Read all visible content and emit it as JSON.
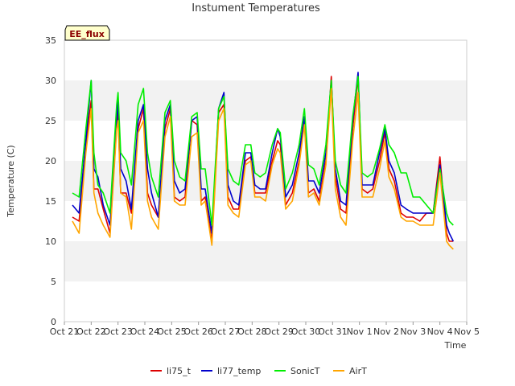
{
  "chart_data": {
    "type": "line",
    "title": "Instument Temperatures",
    "badge": "EE_flux",
    "xlabel": "Time",
    "ylabel": "Temperature (C)",
    "ylim": [
      0,
      35
    ],
    "yticks": [
      0,
      5,
      10,
      15,
      20,
      25,
      30,
      35
    ],
    "xlim": [
      0,
      15
    ],
    "xticks": [
      {
        "label": "Oct 21",
        "day": 0
      },
      {
        "label": "Oct 22",
        "day": 1
      },
      {
        "label": "Oct 23",
        "day": 2
      },
      {
        "label": "Oct 24",
        "day": 3
      },
      {
        "label": "Oct 25",
        "day": 4
      },
      {
        "label": "Oct 26",
        "day": 5
      },
      {
        "label": "Oct 27",
        "day": 6
      },
      {
        "label": "Oct 28",
        "day": 7
      },
      {
        "label": "Oct 29",
        "day": 8
      },
      {
        "label": "Oct 30",
        "day": 9
      },
      {
        "label": "Oct 31",
        "day": 10
      },
      {
        "label": "Nov 1",
        "day": 11
      },
      {
        "label": "Nov 2",
        "day": 12
      },
      {
        "label": "Nov 3",
        "day": 13
      },
      {
        "label": "Nov 4",
        "day": 14
      },
      {
        "label": "Nov 5",
        "day": 15
      }
    ],
    "grid": "horizontal bands",
    "legend_position": "bottom",
    "series": [
      {
        "name": "li75_t",
        "color": "#dd0000",
        "x": [
          0.3,
          0.55,
          0.8,
          1.0,
          1.1,
          1.25,
          1.45,
          1.7,
          1.95,
          2.0,
          2.1,
          2.3,
          2.5,
          2.75,
          2.95,
          3.1,
          3.25,
          3.5,
          3.75,
          3.95,
          4.1,
          4.3,
          4.5,
          4.75,
          4.95,
          5.1,
          5.25,
          5.5,
          5.75,
          5.95,
          6.1,
          6.3,
          6.5,
          6.75,
          6.95,
          7.1,
          7.3,
          7.5,
          7.75,
          7.95,
          8.05,
          8.25,
          8.5,
          8.75,
          8.95,
          9.1,
          9.3,
          9.5,
          9.75,
          9.95,
          10.1,
          10.3,
          10.5,
          10.75,
          10.95,
          11.1,
          11.3,
          11.5,
          11.75,
          11.95,
          12.1,
          12.3,
          12.55,
          12.75,
          13.0,
          13.25,
          13.5,
          13.75,
          14.0,
          14.25,
          14.35,
          14.5
        ],
        "y": [
          13.0,
          12.5,
          22.0,
          27.5,
          16.5,
          16.5,
          14.0,
          11.0,
          24.5,
          26.0,
          16.0,
          16.0,
          13.5,
          24.0,
          26.5,
          16.0,
          14.5,
          13.0,
          24.0,
          26.5,
          15.5,
          15.0,
          15.5,
          25.0,
          24.5,
          15.0,
          15.5,
          10.0,
          26.0,
          27.0,
          15.5,
          14.0,
          14.0,
          20.0,
          20.5,
          16.0,
          16.0,
          16.0,
          20.0,
          22.5,
          22.0,
          14.5,
          16.0,
          20.0,
          25.0,
          16.0,
          16.5,
          15.0,
          20.0,
          30.5,
          18.0,
          14.0,
          13.5,
          24.0,
          30.5,
          16.5,
          16.0,
          16.5,
          20.0,
          23.5,
          19.0,
          17.5,
          13.5,
          13.0,
          13.0,
          12.5,
          13.5,
          13.5,
          20.5,
          11.0,
          10.0,
          10.0
        ]
      },
      {
        "name": "li77_temp",
        "color": "#0000cc",
        "x": [
          0.3,
          0.55,
          0.8,
          1.0,
          1.1,
          1.25,
          1.45,
          1.7,
          1.95,
          2.0,
          2.1,
          2.3,
          2.5,
          2.75,
          2.95,
          3.1,
          3.25,
          3.5,
          3.75,
          3.95,
          4.1,
          4.3,
          4.5,
          4.75,
          4.95,
          5.1,
          5.25,
          5.5,
          5.75,
          5.95,
          6.1,
          6.3,
          6.5,
          6.75,
          6.95,
          7.1,
          7.3,
          7.5,
          7.75,
          7.95,
          8.05,
          8.25,
          8.5,
          8.75,
          8.95,
          9.1,
          9.3,
          9.5,
          9.75,
          9.95,
          10.1,
          10.3,
          10.5,
          10.75,
          10.95,
          11.1,
          11.3,
          11.5,
          11.75,
          11.95,
          12.1,
          12.3,
          12.55,
          12.75,
          13.0,
          13.25,
          13.5,
          13.75,
          14.0,
          14.25,
          14.35,
          14.5
        ],
        "y": [
          14.5,
          13.5,
          22.5,
          30.0,
          19.0,
          18.0,
          14.5,
          12.0,
          25.0,
          27.5,
          19.0,
          17.5,
          14.0,
          25.0,
          27.0,
          19.0,
          16.0,
          13.0,
          25.0,
          27.0,
          17.5,
          16.0,
          16.5,
          25.0,
          25.5,
          16.5,
          16.5,
          11.0,
          26.5,
          28.5,
          17.0,
          15.0,
          14.5,
          21.0,
          21.0,
          17.0,
          16.5,
          16.5,
          21.0,
          24.0,
          23.0,
          15.5,
          17.0,
          21.0,
          25.5,
          17.5,
          17.5,
          16.0,
          21.0,
          30.0,
          19.0,
          15.0,
          14.5,
          25.0,
          31.0,
          17.0,
          17.0,
          17.0,
          21.0,
          24.0,
          20.0,
          18.5,
          14.5,
          14.0,
          13.5,
          13.5,
          13.5,
          13.5,
          19.5,
          12.0,
          11.0,
          10.0
        ]
      },
      {
        "name": "SonicT",
        "color": "#00ee00",
        "x": [
          0.3,
          0.55,
          0.8,
          1.0,
          1.1,
          1.25,
          1.45,
          1.7,
          1.95,
          2.0,
          2.1,
          2.3,
          2.5,
          2.75,
          2.95,
          3.1,
          3.25,
          3.5,
          3.75,
          3.95,
          4.1,
          4.3,
          4.5,
          4.75,
          4.95,
          5.1,
          5.25,
          5.5,
          5.75,
          5.95,
          6.1,
          6.3,
          6.5,
          6.75,
          6.95,
          7.1,
          7.3,
          7.5,
          7.75,
          7.95,
          8.05,
          8.25,
          8.5,
          8.75,
          8.95,
          9.1,
          9.3,
          9.5,
          9.75,
          9.95,
          10.1,
          10.3,
          10.5,
          10.75,
          10.95,
          11.1,
          11.3,
          11.5,
          11.75,
          11.95,
          12.1,
          12.3,
          12.55,
          12.75,
          13.0,
          13.25,
          13.5,
          13.75,
          14.0,
          14.25,
          14.35,
          14.5
        ],
        "y": [
          16.0,
          15.5,
          24.0,
          30.0,
          21.0,
          17.0,
          16.0,
          13.5,
          27.0,
          28.5,
          21.0,
          20.0,
          17.0,
          27.0,
          29.0,
          21.0,
          18.0,
          15.5,
          26.0,
          27.5,
          20.0,
          18.0,
          17.5,
          25.5,
          26.0,
          19.0,
          19.0,
          12.0,
          26.5,
          28.0,
          19.0,
          17.5,
          17.0,
          22.0,
          22.0,
          18.5,
          18.0,
          18.5,
          22.0,
          24.0,
          23.5,
          16.5,
          18.5,
          22.0,
          26.5,
          19.5,
          19.0,
          17.0,
          22.0,
          30.0,
          20.0,
          17.0,
          16.0,
          25.5,
          30.5,
          18.5,
          18.0,
          18.5,
          21.5,
          24.5,
          22.0,
          21.0,
          18.5,
          18.5,
          15.5,
          15.5,
          14.5,
          13.5,
          19.0,
          13.5,
          12.5,
          12.0
        ]
      },
      {
        "name": "AirT",
        "color": "#ffa500",
        "x": [
          0.3,
          0.55,
          0.8,
          1.0,
          1.1,
          1.25,
          1.45,
          1.7,
          1.95,
          2.0,
          2.1,
          2.3,
          2.5,
          2.75,
          2.95,
          3.1,
          3.25,
          3.5,
          3.75,
          3.95,
          4.1,
          4.3,
          4.5,
          4.75,
          4.95,
          5.1,
          5.25,
          5.5,
          5.75,
          5.95,
          6.1,
          6.3,
          6.5,
          6.75,
          6.95,
          7.1,
          7.3,
          7.5,
          7.75,
          7.95,
          8.05,
          8.25,
          8.5,
          8.75,
          8.95,
          9.1,
          9.3,
          9.5,
          9.75,
          9.95,
          10.1,
          10.3,
          10.5,
          10.75,
          10.95,
          11.1,
          11.3,
          11.5,
          11.75,
          11.95,
          12.1,
          12.3,
          12.55,
          12.75,
          13.0,
          13.25,
          13.5,
          13.75,
          14.0,
          14.25,
          14.35,
          14.5
        ],
        "y": [
          12.5,
          11.0,
          21.0,
          26.5,
          16.0,
          13.5,
          12.0,
          10.5,
          24.0,
          25.0,
          16.0,
          15.5,
          11.5,
          23.5,
          25.0,
          15.0,
          13.0,
          11.5,
          23.0,
          25.5,
          15.0,
          14.5,
          14.5,
          23.0,
          23.5,
          14.5,
          15.0,
          9.5,
          25.0,
          26.5,
          14.5,
          13.5,
          13.0,
          19.5,
          20.0,
          15.5,
          15.5,
          15.0,
          19.5,
          21.5,
          21.0,
          14.0,
          15.0,
          19.5,
          24.5,
          15.5,
          16.0,
          14.5,
          19.5,
          29.0,
          16.5,
          13.0,
          12.0,
          22.5,
          28.5,
          15.5,
          15.5,
          15.5,
          19.0,
          22.5,
          18.0,
          16.5,
          13.0,
          12.5,
          12.5,
          12.0,
          12.0,
          12.0,
          18.5,
          10.0,
          9.5,
          9.0
        ]
      }
    ]
  }
}
